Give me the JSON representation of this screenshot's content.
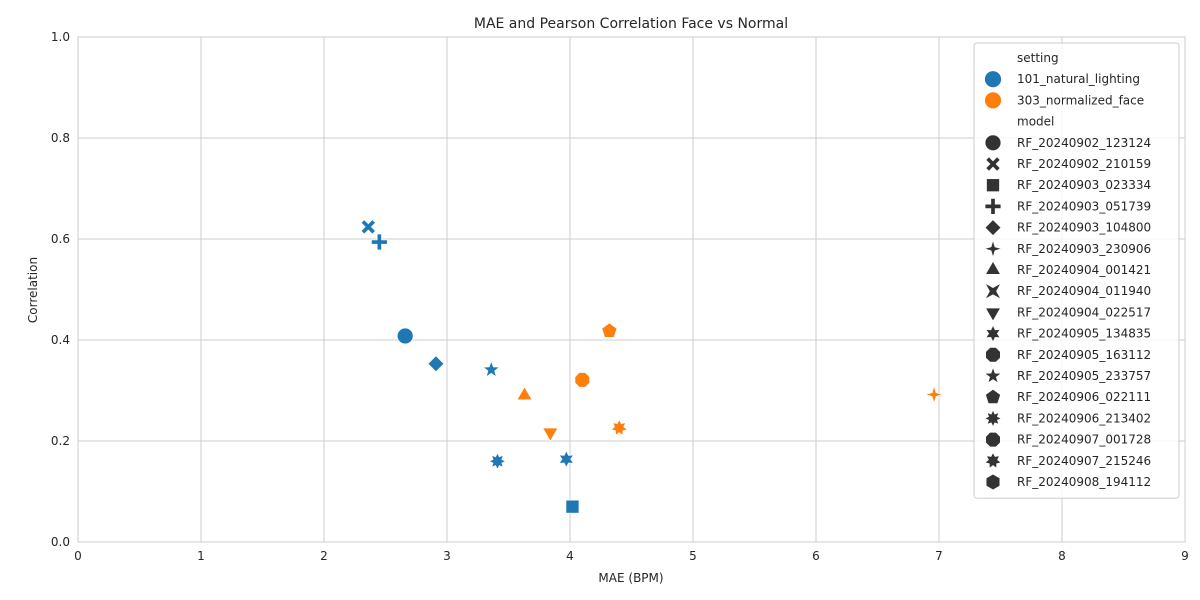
{
  "chart_data": {
    "type": "scatter",
    "title": "MAE and Pearson Correlation Face vs Normal",
    "xlabel": "MAE (BPM)",
    "ylabel": "Correlation",
    "xlim": [
      0,
      9
    ],
    "ylim": [
      0,
      1.0
    ],
    "xticks": [
      "0",
      "1",
      "2",
      "3",
      "4",
      "5",
      "6",
      "7",
      "8",
      "9"
    ],
    "yticks": [
      "0.0",
      "0.2",
      "0.4",
      "0.6",
      "0.8",
      "1.0"
    ],
    "grid": true,
    "legend_position": "top-right",
    "hue_title": "setting",
    "style_title": "model",
    "settings": [
      {
        "name": "101_natural_lighting",
        "color": "#1f77b4"
      },
      {
        "name": "303_normalized_face",
        "color": "#ff7f0e"
      }
    ],
    "models": [
      {
        "name": "RF_20240902_123124",
        "marker": "circle"
      },
      {
        "name": "RF_20240902_210159",
        "marker": "x"
      },
      {
        "name": "RF_20240903_023334",
        "marker": "square"
      },
      {
        "name": "RF_20240903_051739",
        "marker": "plus"
      },
      {
        "name": "RF_20240903_104800",
        "marker": "diamond"
      },
      {
        "name": "RF_20240903_230906",
        "marker": "star4"
      },
      {
        "name": "RF_20240904_001421",
        "marker": "triangle-up"
      },
      {
        "name": "RF_20240904_011940",
        "marker": "bowtie"
      },
      {
        "name": "RF_20240904_022517",
        "marker": "triangle-down"
      },
      {
        "name": "RF_20240905_134835",
        "marker": "star6"
      },
      {
        "name": "RF_20240905_163112",
        "marker": "octagon"
      },
      {
        "name": "RF_20240905_233757",
        "marker": "star5"
      },
      {
        "name": "RF_20240906_022111",
        "marker": "pentagon"
      },
      {
        "name": "RF_20240906_213402",
        "marker": "star8"
      },
      {
        "name": "RF_20240907_001728",
        "marker": "octagon"
      },
      {
        "name": "RF_20240907_215246",
        "marker": "star7"
      },
      {
        "name": "RF_20240908_194112",
        "marker": "hexagon"
      }
    ],
    "points": [
      {
        "x": 2.36,
        "y": 0.624,
        "setting": 0,
        "model": 1
      },
      {
        "x": 2.45,
        "y": 0.594,
        "setting": 0,
        "model": 3
      },
      {
        "x": 2.66,
        "y": 0.408,
        "setting": 0,
        "model": 0
      },
      {
        "x": 2.91,
        "y": 0.353,
        "setting": 0,
        "model": 4
      },
      {
        "x": 3.36,
        "y": 0.341,
        "setting": 0,
        "model": 11
      },
      {
        "x": 3.41,
        "y": 0.16,
        "setting": 0,
        "model": 13
      },
      {
        "x": 3.97,
        "y": 0.164,
        "setting": 0,
        "model": 9
      },
      {
        "x": 4.02,
        "y": 0.07,
        "setting": 0,
        "model": 2
      },
      {
        "x": 3.63,
        "y": 0.29,
        "setting": 1,
        "model": 6
      },
      {
        "x": 3.84,
        "y": 0.217,
        "setting": 1,
        "model": 8
      },
      {
        "x": 4.1,
        "y": 0.321,
        "setting": 1,
        "model": 14
      },
      {
        "x": 4.32,
        "y": 0.418,
        "setting": 1,
        "model": 12
      },
      {
        "x": 4.4,
        "y": 0.226,
        "setting": 1,
        "model": 15
      },
      {
        "x": 6.96,
        "y": 0.292,
        "setting": 1,
        "model": 5
      }
    ]
  }
}
